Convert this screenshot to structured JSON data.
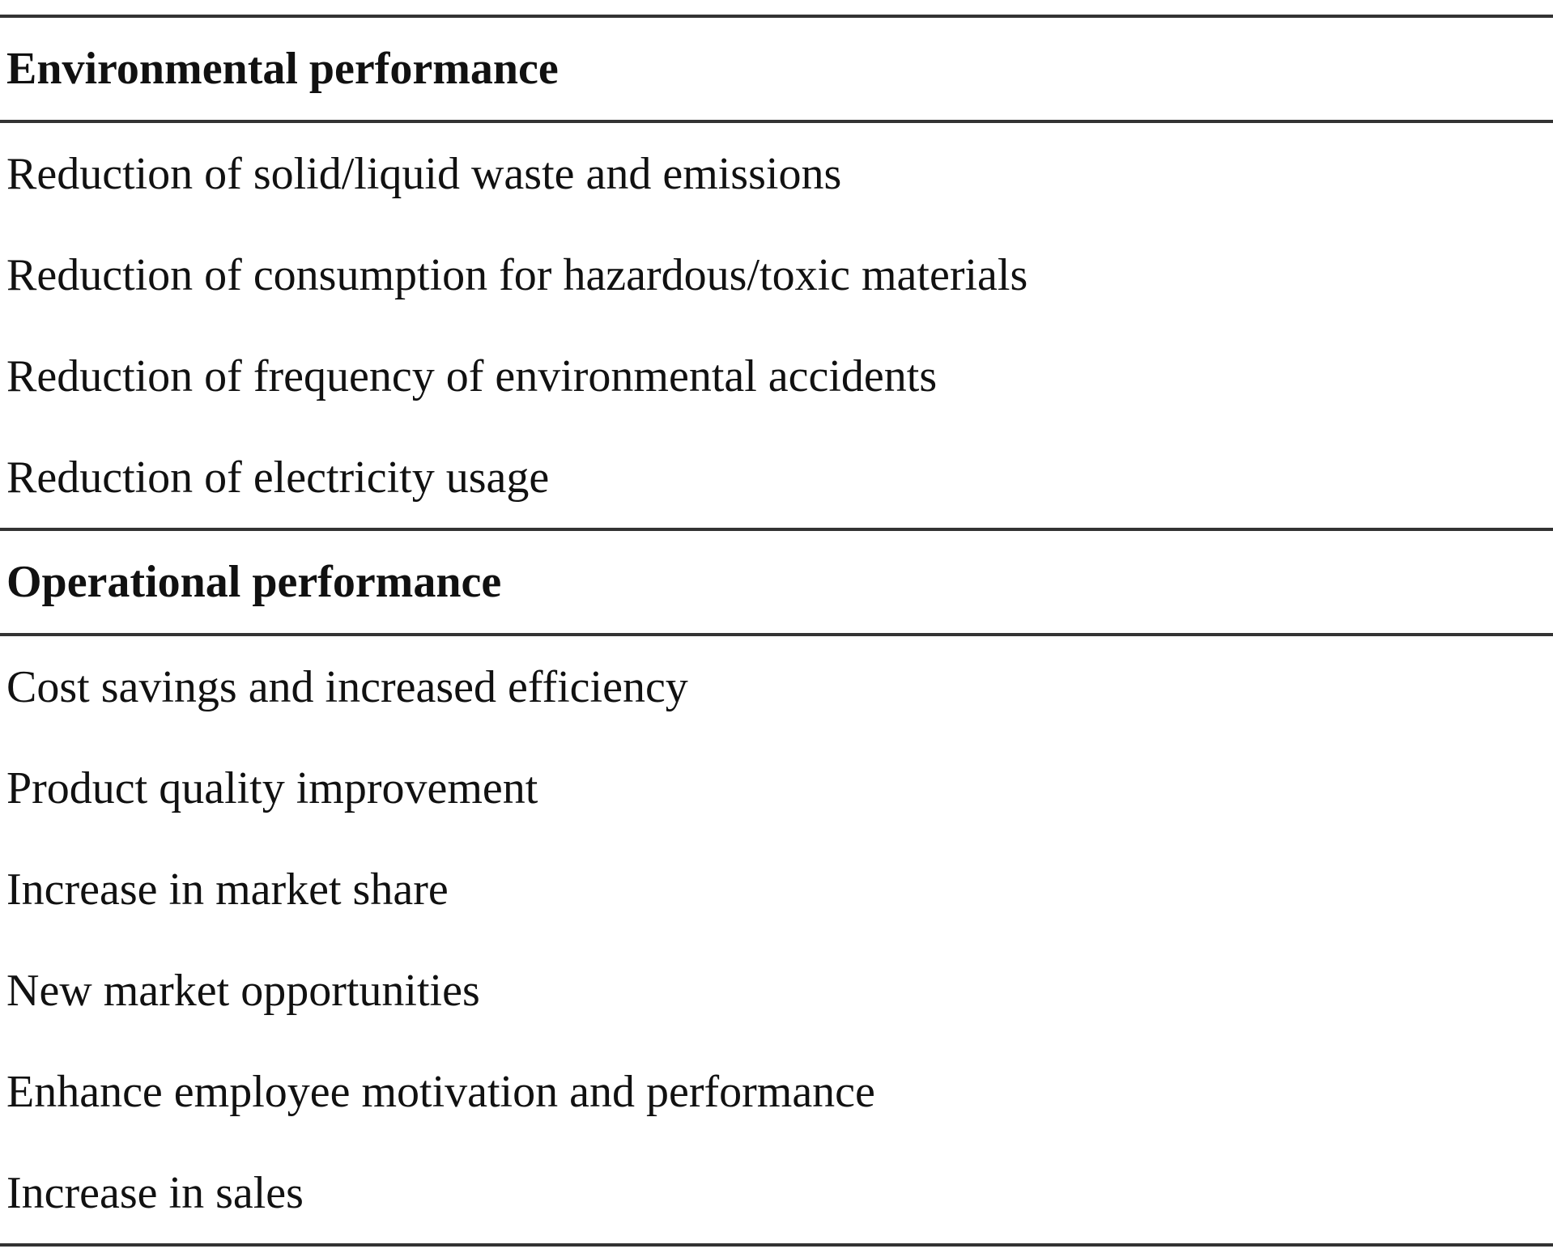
{
  "sections": [
    {
      "heading": "Environmental performance",
      "items": [
        "Reduction of solid/liquid waste and emissions",
        "Reduction of consumption for hazardous/toxic materials",
        "Reduction of frequency of environmental accidents",
        "Reduction of electricity usage"
      ]
    },
    {
      "heading": "Operational performance",
      "items": [
        "Cost savings and increased efficiency",
        "Product quality improvement",
        "Increase in market share",
        "New market opportunities",
        "Enhance employee motivation and performance",
        "Increase in sales"
      ]
    }
  ]
}
